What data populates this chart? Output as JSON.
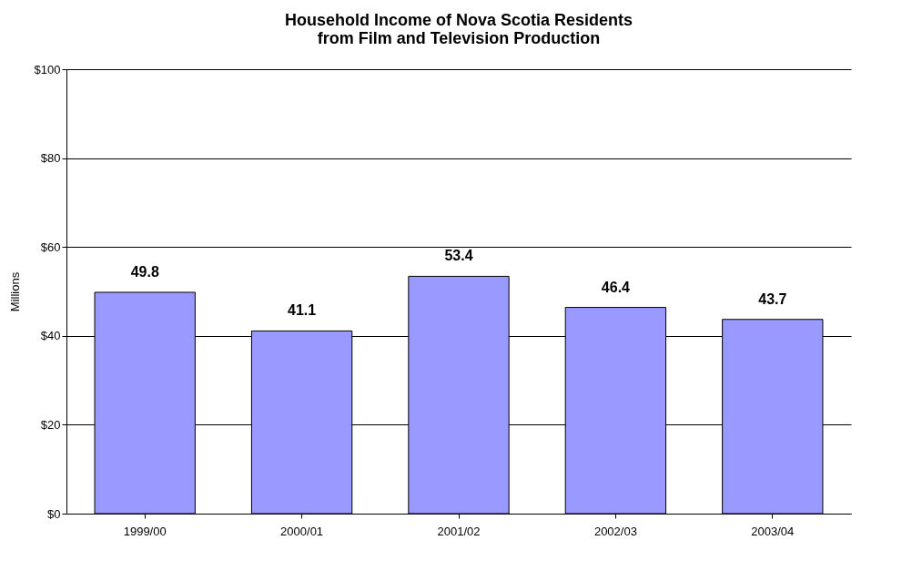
{
  "chart_data": {
    "type": "bar",
    "title": [
      "Household Income of Nova Scotia Residents",
      "from Film and Television Production"
    ],
    "ylabel": "Millions",
    "categories": [
      "1999/00",
      "2000/01",
      "2001/02",
      "2002/03",
      "2003/04"
    ],
    "values": [
      49.8,
      41.1,
      53.4,
      46.4,
      43.7
    ],
    "color": "#9999ff",
    "data_labels": true,
    "ylim": [
      0,
      100
    ],
    "yticks": [
      {
        "value": 0,
        "label": "$0"
      },
      {
        "value": 20,
        "label": "$20"
      },
      {
        "value": 40,
        "label": "$40"
      },
      {
        "value": 60,
        "label": "$60"
      },
      {
        "value": 80,
        "label": "$80"
      },
      {
        "value": 100,
        "label": "$100"
      }
    ],
    "grid": "y"
  }
}
